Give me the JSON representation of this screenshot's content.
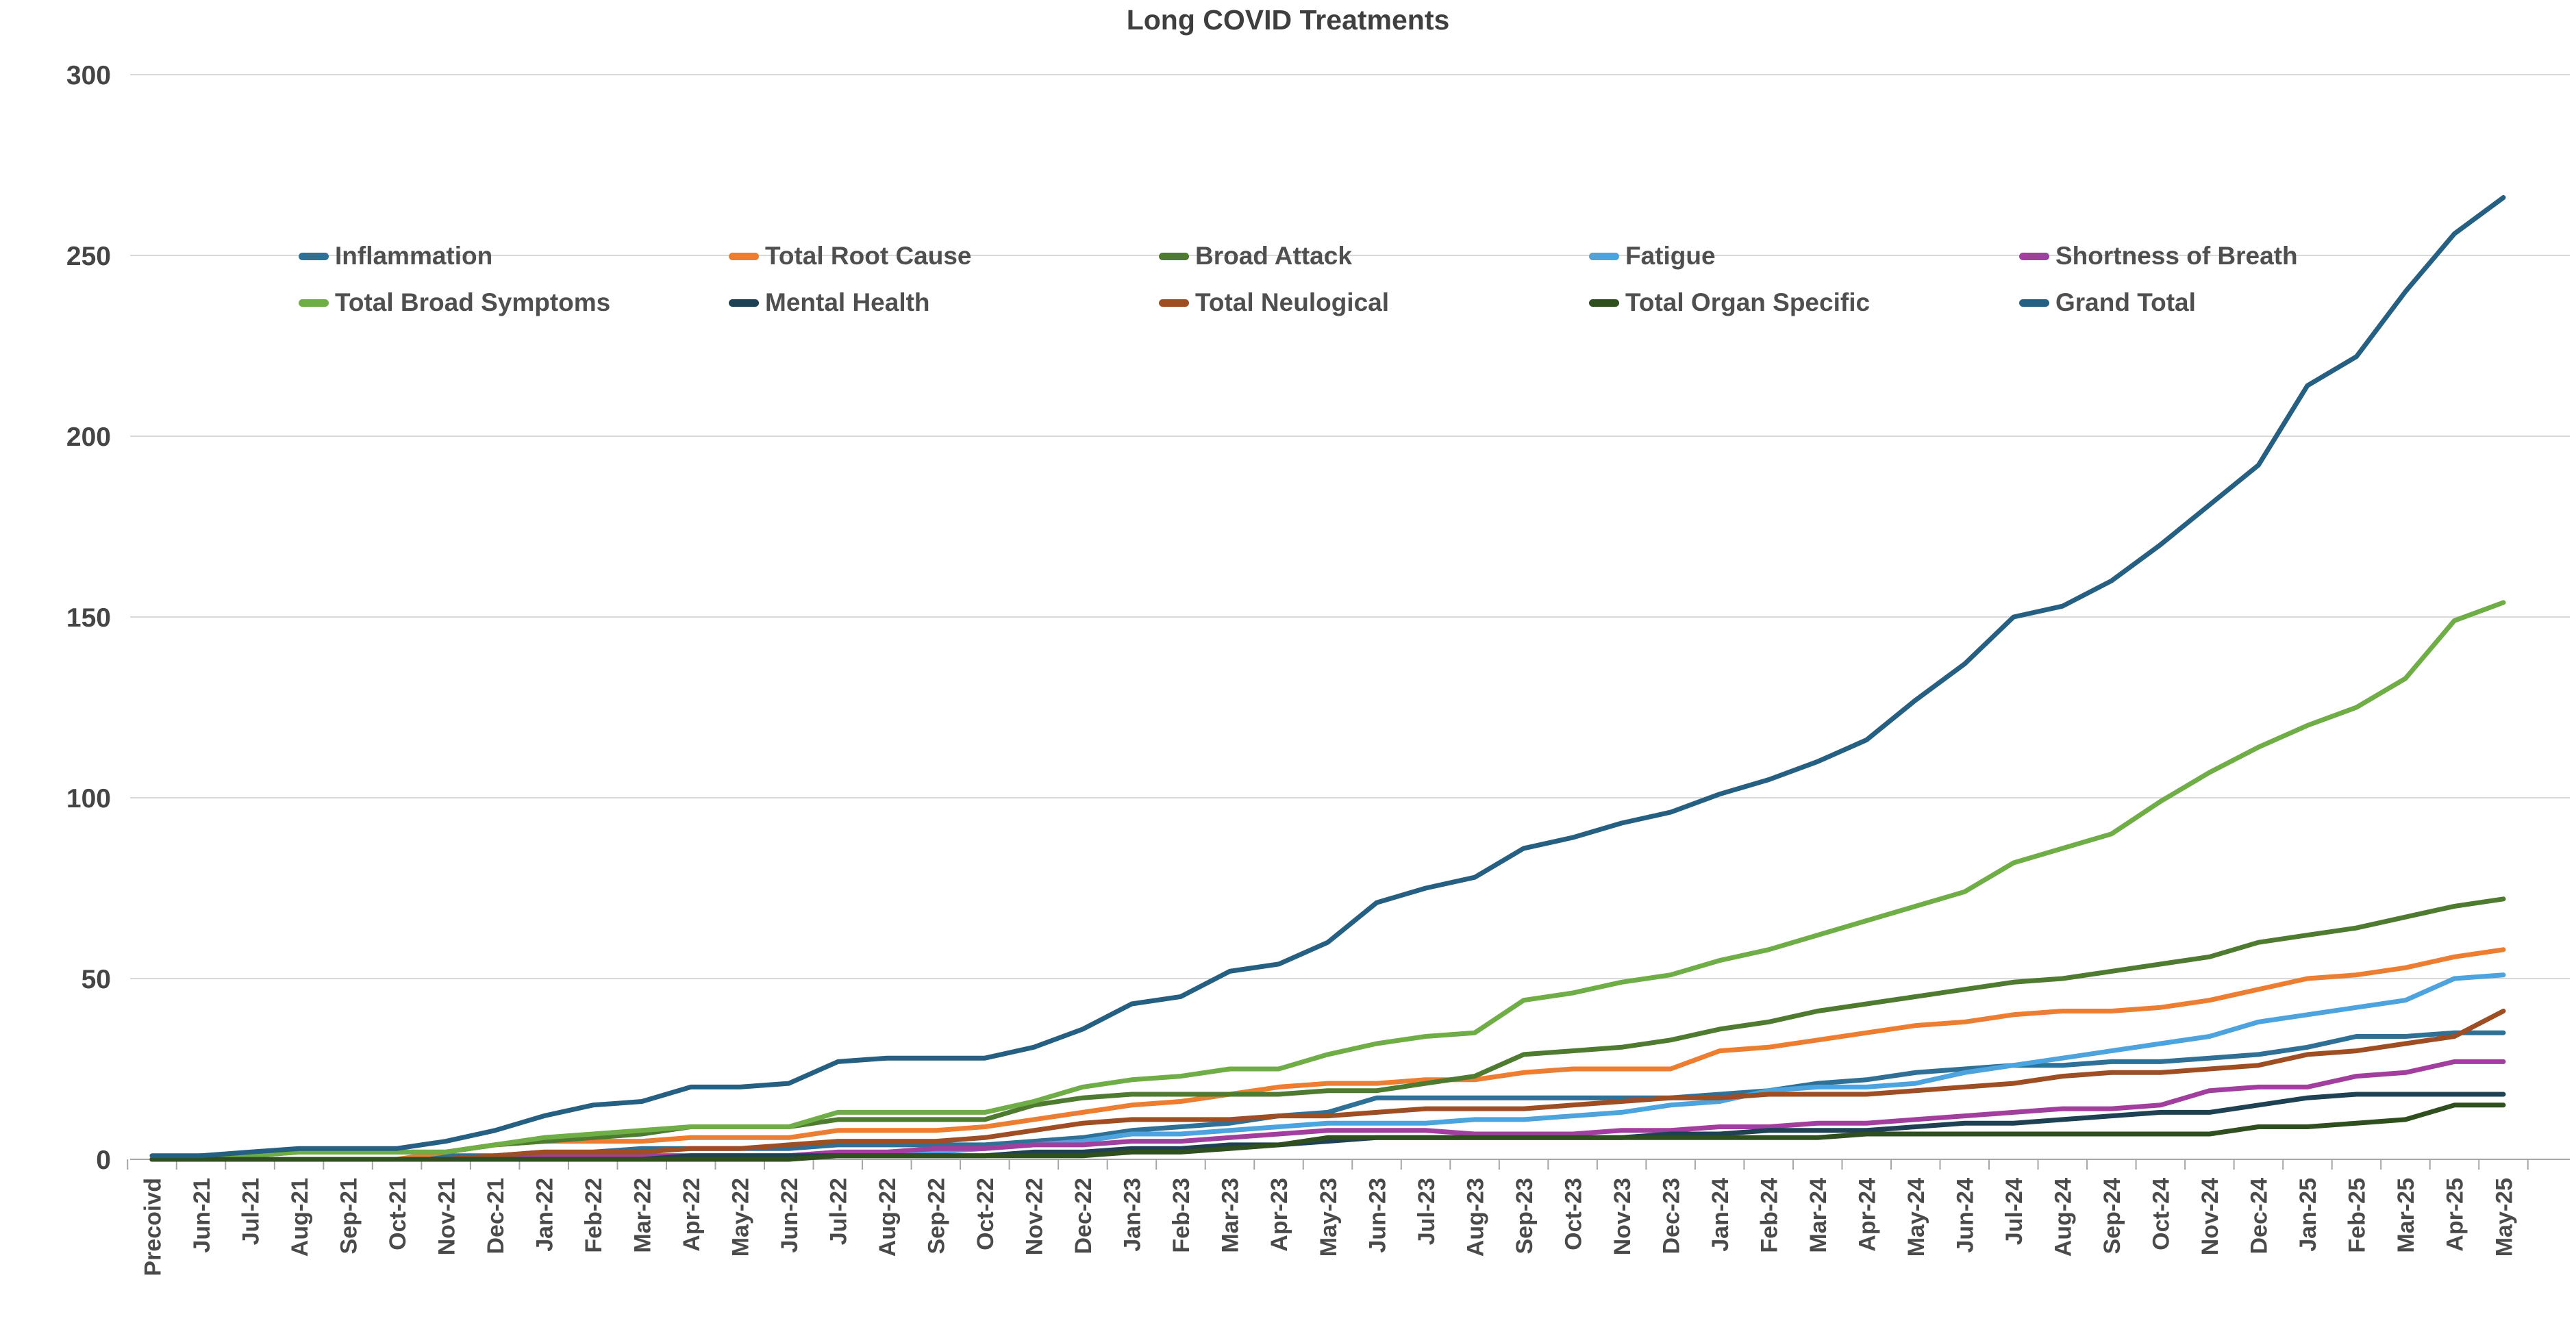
{
  "title": "Long COVID Treatments",
  "chart_data": {
    "type": "line",
    "title": "Long COVID Treatments",
    "grid": true,
    "legend_position": "top-inside-two-rows",
    "y_axis": {
      "min": 0,
      "max": 300,
      "step": 50,
      "tick_labels": [
        "0",
        "50",
        "100",
        "150",
        "200",
        "250",
        "300"
      ]
    },
    "categories": [
      "Precoivd",
      "Jun-21",
      "Jul-21",
      "Aug-21",
      "Sep-21",
      "Oct-21",
      "Nov-21",
      "Dec-21",
      "Jan-22",
      "Feb-22",
      "Mar-22",
      "Apr-22",
      "May-22",
      "Jun-22",
      "Jul-22",
      "Aug-22",
      "Sep-22",
      "Oct-22",
      "Nov-22",
      "Dec-22",
      "Jan-23",
      "Feb-23",
      "Mar-23",
      "Apr-23",
      "May-23",
      "Jun-23",
      "Jul-23",
      "Aug-23",
      "Sep-23",
      "Oct-23",
      "Nov-23",
      "Dec-23",
      "Jan-24",
      "Feb-24",
      "Mar-24",
      "Apr-24",
      "May-24",
      "Jun-24",
      "Jul-24",
      "Aug-24",
      "Sep-24",
      "Oct-24",
      "Nov-24",
      "Dec-24",
      "Jan-25",
      "Feb-25",
      "Mar-25",
      "Apr-25",
      "May-25"
    ],
    "series": [
      {
        "name": "Inflammation",
        "color": "#2E7096",
        "values": [
          0,
          0,
          0,
          0,
          0,
          0,
          1,
          1,
          2,
          2,
          3,
          3,
          3,
          3,
          4,
          4,
          4,
          4,
          5,
          6,
          8,
          9,
          10,
          12,
          13,
          17,
          17,
          17,
          17,
          17,
          17,
          17,
          18,
          19,
          21,
          22,
          24,
          25,
          26,
          26,
          27,
          27,
          28,
          29,
          31,
          34,
          34,
          35,
          35
        ]
      },
      {
        "name": "Total Root Cause",
        "color": "#ED7D31",
        "values": [
          0,
          0,
          0,
          0,
          0,
          0,
          2,
          4,
          5,
          5,
          5,
          6,
          6,
          6,
          8,
          8,
          8,
          9,
          11,
          13,
          15,
          16,
          18,
          20,
          21,
          21,
          22,
          22,
          24,
          25,
          25,
          25,
          30,
          31,
          33,
          35,
          37,
          38,
          40,
          41,
          41,
          42,
          44,
          47,
          50,
          51,
          53,
          56,
          58
        ]
      },
      {
        "name": "Broad Attack",
        "color": "#4E7B30",
        "values": [
          0,
          1,
          1,
          2,
          2,
          2,
          2,
          4,
          5,
          6,
          7,
          9,
          9,
          9,
          11,
          11,
          11,
          11,
          15,
          17,
          18,
          18,
          18,
          18,
          19,
          19,
          21,
          23,
          29,
          30,
          31,
          33,
          36,
          38,
          41,
          43,
          45,
          47,
          49,
          50,
          52,
          54,
          56,
          60,
          62,
          64,
          67,
          70,
          72
        ]
      },
      {
        "name": "Fatigue",
        "color": "#4DA3DD",
        "values": [
          0,
          0,
          0,
          0,
          0,
          0,
          0,
          1,
          1,
          1,
          1,
          1,
          1,
          1,
          2,
          2,
          2,
          3,
          4,
          5,
          7,
          7,
          8,
          9,
          10,
          10,
          10,
          11,
          11,
          12,
          13,
          15,
          16,
          19,
          20,
          20,
          21,
          24,
          26,
          28,
          30,
          32,
          34,
          38,
          40,
          42,
          44,
          50,
          51
        ]
      },
      {
        "name": "Shortness of Breath",
        "color": "#A23F9E",
        "values": [
          0,
          0,
          0,
          0,
          0,
          0,
          0,
          0,
          1,
          1,
          1,
          1,
          1,
          1,
          2,
          2,
          3,
          3,
          4,
          4,
          5,
          5,
          6,
          7,
          8,
          8,
          8,
          7,
          7,
          7,
          8,
          8,
          9,
          9,
          10,
          10,
          11,
          12,
          13,
          14,
          14,
          15,
          19,
          20,
          20,
          23,
          24,
          27,
          27
        ]
      },
      {
        "name": "Total Broad Symptoms",
        "color": "#6FAD46",
        "values": [
          0,
          1,
          1,
          2,
          2,
          2,
          2,
          4,
          6,
          7,
          8,
          9,
          9,
          9,
          13,
          13,
          13,
          13,
          16,
          20,
          22,
          23,
          25,
          25,
          29,
          32,
          34,
          35,
          44,
          46,
          49,
          51,
          55,
          58,
          62,
          66,
          70,
          74,
          82,
          86,
          90,
          99,
          107,
          114,
          120,
          125,
          133,
          149,
          154
        ]
      },
      {
        "name": "Mental Health",
        "color": "#1E4154",
        "values": [
          0,
          0,
          0,
          0,
          0,
          0,
          0,
          0,
          0,
          0,
          0,
          1,
          1,
          1,
          1,
          1,
          1,
          1,
          2,
          2,
          3,
          3,
          4,
          4,
          5,
          6,
          6,
          6,
          6,
          6,
          6,
          7,
          7,
          8,
          8,
          8,
          9,
          10,
          10,
          11,
          12,
          13,
          13,
          15,
          17,
          18,
          18,
          18,
          18
        ]
      },
      {
        "name": "Total Neulogical",
        "color": "#9E4E22",
        "values": [
          0,
          0,
          0,
          0,
          0,
          0,
          0,
          1,
          2,
          2,
          2,
          3,
          3,
          4,
          5,
          5,
          5,
          6,
          8,
          10,
          11,
          11,
          11,
          12,
          12,
          13,
          14,
          14,
          14,
          15,
          16,
          17,
          17,
          18,
          18,
          18,
          19,
          20,
          21,
          23,
          24,
          24,
          25,
          26,
          29,
          30,
          32,
          34,
          41
        ]
      },
      {
        "name": "Total Organ Specific",
        "color": "#2F4F1F",
        "values": [
          0,
          0,
          0,
          0,
          0,
          0,
          0,
          0,
          0,
          0,
          0,
          0,
          0,
          0,
          1,
          1,
          1,
          1,
          1,
          1,
          2,
          2,
          3,
          4,
          6,
          6,
          6,
          6,
          6,
          6,
          6,
          6,
          6,
          6,
          6,
          7,
          7,
          7,
          7,
          7,
          7,
          7,
          7,
          9,
          9,
          10,
          11,
          15,
          15
        ]
      },
      {
        "name": "Grand Total",
        "color": "#255F82",
        "values": [
          1,
          1,
          2,
          3,
          3,
          3,
          5,
          8,
          12,
          15,
          16,
          20,
          20,
          21,
          27,
          28,
          28,
          28,
          31,
          36,
          43,
          45,
          52,
          54,
          60,
          71,
          75,
          78,
          86,
          89,
          93,
          96,
          101,
          105,
          110,
          116,
          127,
          137,
          150,
          153,
          160,
          170,
          181,
          192,
          214,
          222,
          240,
          256,
          266
        ]
      }
    ],
    "legend_rows": [
      [
        "Inflammation",
        "Total Root Cause",
        "Broad Attack",
        "Fatigue",
        "Shortness of Breath"
      ],
      [
        "Total Broad Symptoms",
        "Mental Health",
        "Total Neulogical",
        "Total Organ Specific",
        "Grand Total"
      ]
    ]
  },
  "colors": {
    "gridline": "#D9D9D9",
    "axis": "#A6A6A6",
    "tick_label": "#4a4a4a",
    "y_label": "#454545",
    "title": "#3f3f3f"
  }
}
